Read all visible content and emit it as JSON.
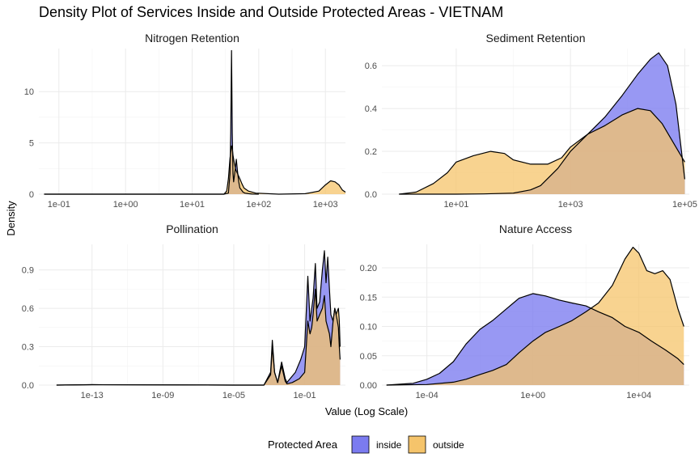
{
  "chart_data": {
    "type": "area",
    "title": "Density Plot of Services Inside and Outside Protected Areas - VIETNAM",
    "xlabel": "Value (Log Scale)",
    "ylabel": "Density",
    "x_scale": "log10",
    "grid": true,
    "legend": {
      "title": "Protected Area",
      "placement": "bottom",
      "entries": [
        {
          "name": "inside",
          "color": "#7b7bf0"
        },
        {
          "name": "outside",
          "color": "#f5c46b"
        }
      ]
    },
    "overlap_color": "#b2938a",
    "panels": [
      {
        "title": "Nitrogen Retention",
        "xlim": [
          0.05,
          2000
        ],
        "ylim": [
          0,
          14.2
        ],
        "xticks": [
          {
            "value": 0.1,
            "label": "1e-01"
          },
          {
            "value": 1,
            "label": "1e+00"
          },
          {
            "value": 10,
            "label": "1e+01"
          },
          {
            "value": 100,
            "label": "1e+02"
          },
          {
            "value": 1000,
            "label": "1e+03"
          }
        ],
        "yticks": [
          {
            "value": 0,
            "label": "0"
          },
          {
            "value": 5,
            "label": "5"
          },
          {
            "value": 10,
            "label": "10"
          }
        ],
        "series": [
          {
            "name": "inside",
            "x": [
              0.06,
              1,
              20,
              30,
              35,
              37,
              38,
              39,
              40,
              41,
              42,
              44,
              46,
              48,
              50,
              52,
              55,
              58,
              62,
              70,
              80,
              100
            ],
            "y": [
              0,
              0,
              0,
              0,
              0.1,
              2,
              6,
              14,
              6,
              2,
              1.2,
              2.3,
              3.4,
              2.2,
              1.2,
              0.6,
              0.4,
              0.2,
              0.1,
              0.05,
              0.01,
              0
            ]
          },
          {
            "name": "outside",
            "x": [
              0.06,
              1,
              20,
              30,
              33,
              35,
              37,
              39,
              40,
              41,
              43,
              45,
              48,
              52,
              56,
              60,
              70,
              90,
              200,
              500,
              800,
              1000,
              1200,
              1400,
              1600,
              1800,
              2000
            ],
            "y": [
              0,
              0,
              0,
              0,
              0.3,
              1.5,
              3.5,
              4.7,
              4.5,
              3.8,
              3.0,
              2.4,
              2.0,
              1.5,
              1.0,
              0.6,
              0.3,
              0.1,
              0,
              0.05,
              0.3,
              0.9,
              1.3,
              1.2,
              0.9,
              0.4,
              0.2
            ]
          }
        ]
      },
      {
        "title": "Sediment Retention",
        "xlim": [
          0.5,
          120000
        ],
        "ylim": [
          0,
          0.68
        ],
        "xticks": [
          {
            "value": 10,
            "label": "1e+01"
          },
          {
            "value": 1000,
            "label": "1e+03"
          },
          {
            "value": 100000,
            "label": "1e+05"
          }
        ],
        "yticks": [
          {
            "value": 0,
            "label": "0.0"
          },
          {
            "value": 0.2,
            "label": "0.2"
          },
          {
            "value": 0.4,
            "label": "0.4"
          },
          {
            "value": 0.6,
            "label": "0.6"
          }
        ],
        "series": [
          {
            "name": "inside",
            "x": [
              1,
              3,
              10,
              30,
              100,
              200,
              300,
              600,
              1000,
              2000,
              4000,
              8000,
              15000,
              25000,
              35000,
              50000,
              70000,
              100000
            ],
            "y": [
              0,
              0,
              0,
              0.001,
              0.005,
              0.02,
              0.04,
              0.12,
              0.2,
              0.28,
              0.36,
              0.46,
              0.56,
              0.63,
              0.66,
              0.6,
              0.42,
              0.07
            ]
          },
          {
            "name": "outside",
            "x": [
              1,
              2,
              4,
              7,
              10,
              20,
              40,
              70,
              100,
              200,
              400,
              700,
              1000,
              2000,
              4000,
              8000,
              15000,
              25000,
              40000,
              70000,
              100000
            ],
            "y": [
              0,
              0.01,
              0.05,
              0.1,
              0.15,
              0.18,
              0.2,
              0.19,
              0.16,
              0.14,
              0.14,
              0.17,
              0.22,
              0.28,
              0.32,
              0.37,
              0.4,
              0.39,
              0.33,
              0.22,
              0.15
            ]
          }
        ]
      },
      {
        "title": "Pollination",
        "xlim": [
          1e-16,
          20
        ],
        "ylim": [
          0,
          1.1
        ],
        "xticks": [
          {
            "value": 1e-13,
            "label": "1e-13"
          },
          {
            "value": 1e-09,
            "label": "1e-09"
          },
          {
            "value": 1e-05,
            "label": "1e-05"
          },
          {
            "value": 0.1,
            "label": "1e-01"
          }
        ],
        "yticks": [
          {
            "value": 0,
            "label": "0.0"
          },
          {
            "value": 0.3,
            "label": "0.3"
          },
          {
            "value": 0.6,
            "label": "0.6"
          },
          {
            "value": 0.9,
            "label": "0.9"
          }
        ],
        "series": [
          {
            "name": "inside",
            "x": [
              1e-15,
              1e-13,
              1e-05,
              0.0005,
              0.0012,
              0.0015,
              0.002,
              0.003,
              0.005,
              0.008,
              0.01,
              0.015,
              0.03,
              0.06,
              0.1,
              0.15,
              0.2,
              0.25,
              0.3,
              0.4,
              0.5,
              0.7,
              1,
              1.3,
              1.6,
              2,
              2.5,
              3,
              4,
              5,
              6,
              7,
              8,
              9,
              10
            ],
            "y": [
              0,
              0.003,
              0,
              0,
              0.1,
              0.35,
              0.1,
              0.02,
              0.18,
              0.05,
              0.02,
              0.05,
              0.1,
              0.2,
              0.3,
              0.85,
              0.5,
              0.6,
              0.68,
              0.95,
              0.6,
              0.65,
              0.9,
              1.05,
              0.8,
              1.0,
              0.75,
              0.55,
              0.5,
              0.6,
              0.55,
              0.5,
              0.45,
              0.3,
              0.2
            ]
          },
          {
            "name": "outside",
            "x": [
              1e-15,
              1e-13,
              1e-05,
              0.0005,
              0.0012,
              0.0015,
              0.002,
              0.003,
              0.005,
              0.008,
              0.01,
              0.02,
              0.05,
              0.1,
              0.15,
              0.2,
              0.25,
              0.3,
              0.4,
              0.5,
              0.7,
              1,
              1.3,
              1.6,
              2,
              2.5,
              3,
              4,
              5,
              6,
              7,
              8,
              9,
              10
            ],
            "y": [
              0,
              0.003,
              0,
              0,
              0.08,
              0.3,
              0.1,
              0.02,
              0.15,
              0.03,
              0.01,
              0.02,
              0.05,
              0.1,
              0.5,
              0.4,
              0.45,
              0.55,
              0.75,
              0.5,
              0.55,
              0.6,
              0.7,
              0.5,
              0.45,
              0.4,
              0.3,
              0.5,
              0.6,
              0.55,
              0.58,
              0.6,
              0.5,
              0.3
            ]
          }
        ]
      },
      {
        "title": "Nature Access",
        "xlim": [
          2e-06,
          800000
        ],
        "ylim": [
          0,
          0.24
        ],
        "xticks": [
          {
            "value": 0.0001,
            "label": "1e-04"
          },
          {
            "value": 1,
            "label": "1e+00"
          },
          {
            "value": 10000,
            "label": "1e+04"
          }
        ],
        "yticks": [
          {
            "value": 0,
            "label": "0.00"
          },
          {
            "value": 0.05,
            "label": "0.05"
          },
          {
            "value": 0.1,
            "label": "0.10"
          },
          {
            "value": 0.15,
            "label": "0.15"
          },
          {
            "value": 0.2,
            "label": "0.20"
          }
        ],
        "series": [
          {
            "name": "inside",
            "x": [
              3e-06,
              3e-05,
              0.0001,
              0.0003,
              0.001,
              0.003,
              0.01,
              0.03,
              0.1,
              0.3,
              1,
              3,
              10,
              30,
              100,
              300,
              1000,
              3000,
              10000,
              30000,
              100000,
              300000,
              500000
            ],
            "y": [
              0,
              0.003,
              0.01,
              0.02,
              0.04,
              0.07,
              0.095,
              0.11,
              0.13,
              0.148,
              0.156,
              0.152,
              0.145,
              0.14,
              0.135,
              0.125,
              0.115,
              0.1,
              0.09,
              0.075,
              0.06,
              0.045,
              0.035
            ]
          },
          {
            "name": "outside",
            "x": [
              3e-06,
              0.0001,
              0.001,
              0.003,
              0.01,
              0.03,
              0.1,
              0.3,
              1,
              3,
              10,
              30,
              100,
              300,
              1000,
              3000,
              6000,
              10000,
              20000,
              40000,
              80000,
              150000,
              300000,
              500000
            ],
            "y": [
              0,
              0.001,
              0.005,
              0.01,
              0.018,
              0.025,
              0.035,
              0.055,
              0.075,
              0.09,
              0.1,
              0.11,
              0.125,
              0.14,
              0.17,
              0.215,
              0.235,
              0.225,
              0.195,
              0.19,
              0.195,
              0.18,
              0.13,
              0.1
            ]
          }
        ]
      }
    ]
  }
}
